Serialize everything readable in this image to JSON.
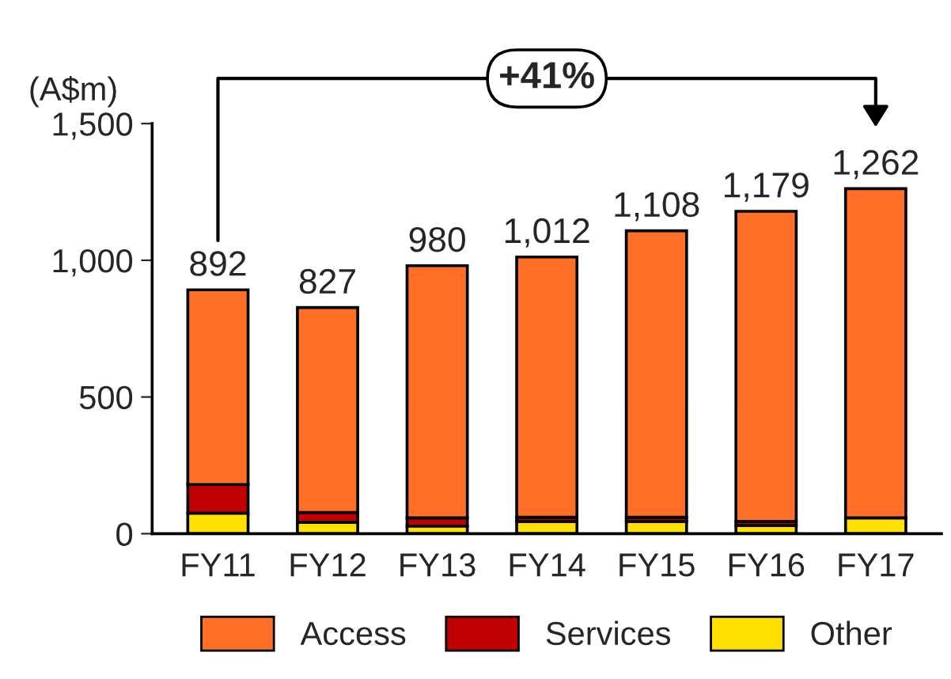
{
  "chart_data": {
    "type": "bar",
    "stacked": true,
    "ylabel": "(A$m)",
    "categories": [
      "FY11",
      "FY12",
      "FY13",
      "FY14",
      "FY15",
      "FY16",
      "FY17"
    ],
    "series": [
      {
        "name": "Other",
        "color": "#ffe000",
        "values": [
          75,
          42,
          28,
          45,
          45,
          30,
          58
        ]
      },
      {
        "name": "Services",
        "color": "#c00000",
        "values": [
          105,
          36,
          30,
          15,
          15,
          15,
          null
        ]
      },
      {
        "name": "Access",
        "color": "#ff7026",
        "values": [
          712,
          749,
          922,
          952,
          1048,
          1134,
          1204
        ]
      }
    ],
    "totals": [
      "892",
      "827",
      "980",
      "1,012",
      "1,108",
      "1,179",
      "1,262"
    ],
    "annotations": [
      "+41%"
    ],
    "ylim": [
      0,
      1500
    ],
    "yticks": [
      0,
      {
        "value": 500,
        "label": "500"
      },
      {
        "value": 1000,
        "label": "1,000"
      },
      {
        "value": 1500,
        "label": "1,500"
      }
    ],
    "grid": false,
    "legend": "bottom"
  }
}
